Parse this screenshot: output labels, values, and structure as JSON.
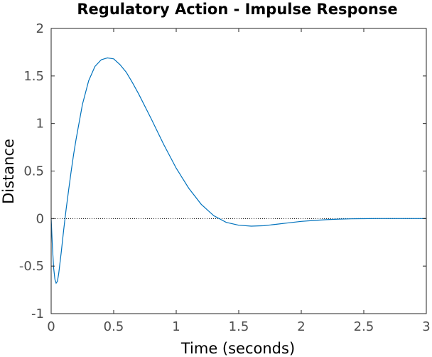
{
  "chart_data": {
    "type": "line",
    "title": "Regulatory Action - Impulse Response",
    "xlabel": "Time (seconds)",
    "ylabel": "Distance",
    "xlim": [
      0,
      3
    ],
    "ylim": [
      -1,
      2
    ],
    "x_ticks": [
      "0",
      "0.5",
      "1",
      "1.5",
      "2",
      "2.5",
      "3"
    ],
    "y_ticks": [
      "-1",
      "-0.5",
      "0",
      "0.5",
      "1",
      "1.5",
      "2"
    ],
    "grid": false,
    "reference_line": {
      "y": 0,
      "style": "dotted",
      "color": "#000000"
    },
    "series": [
      {
        "color": "#0072bd",
        "x": [
          0,
          0.01,
          0.02,
          0.03,
          0.04,
          0.05,
          0.06,
          0.08,
          0.1,
          0.12,
          0.14,
          0.16,
          0.18,
          0.2,
          0.25,
          0.3,
          0.35,
          0.4,
          0.45,
          0.5,
          0.55,
          0.6,
          0.65,
          0.7,
          0.8,
          0.9,
          1.0,
          1.1,
          1.2,
          1.3,
          1.4,
          1.5,
          1.6,
          1.7,
          1.8,
          1.9,
          2.0,
          2.1,
          2.2,
          2.3,
          2.4,
          2.5,
          2.6,
          2.8,
          3.0
        ],
        "y": [
          0,
          -0.3,
          -0.52,
          -0.64,
          -0.68,
          -0.66,
          -0.58,
          -0.36,
          -0.12,
          0.1,
          0.3,
          0.5,
          0.68,
          0.84,
          1.2,
          1.45,
          1.6,
          1.67,
          1.69,
          1.68,
          1.62,
          1.54,
          1.43,
          1.31,
          1.05,
          0.78,
          0.53,
          0.32,
          0.15,
          0.03,
          -0.04,
          -0.07,
          -0.08,
          -0.075,
          -0.06,
          -0.045,
          -0.03,
          -0.02,
          -0.012,
          -0.006,
          -0.003,
          -0.001,
          0,
          0,
          0
        ]
      }
    ]
  }
}
